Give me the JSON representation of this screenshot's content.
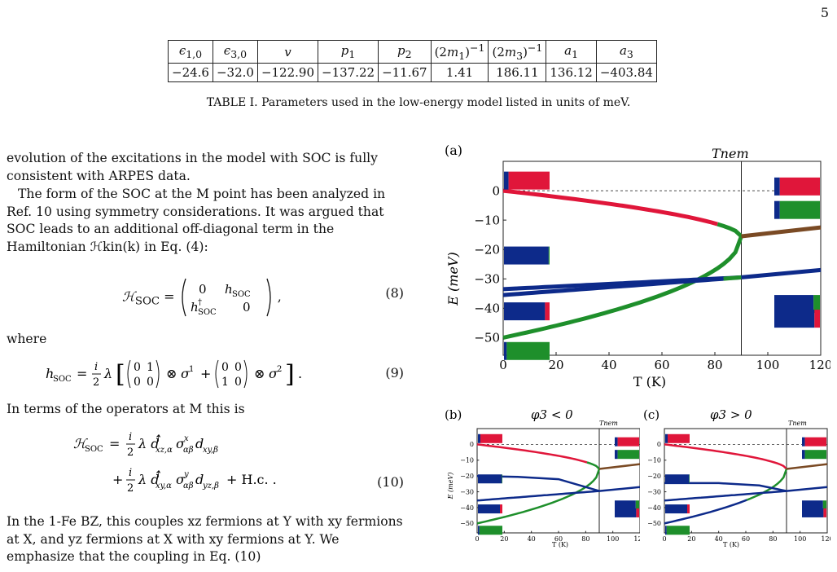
{
  "page_number": "5",
  "table": {
    "headers": [
      "ε1,0",
      "ε3,0",
      "v",
      "p1",
      "p2",
      "(2m1)−1",
      "(2m3)−1",
      "a1",
      "a3"
    ],
    "values": [
      "−24.6",
      "−32.0",
      "−122.90",
      "−137.22",
      "−11.67",
      "1.41",
      "186.11",
      "136.12",
      "−403.84"
    ]
  },
  "table_caption": "TABLE I. Parameters used in the low-energy model listed in units of meV.",
  "text": {
    "p1": "evolution of the excitations in the model with SOC is fully consistent with ARPES data.",
    "p2": "The form of the SOC at the M point has been analyzed in Ref. 10 using symmetry considerations. It was argued that SOC leads to an additional off-diagonal term in the Hamiltonian ℋkin(k) in Eq. (4):",
    "where": "where",
    "p3": "In terms of the operators at M this is",
    "p4": "In the 1-Fe BZ, this couples xz fermions at Y with xy fermions at X, and yz fermions at X with xy fermions at Y.  We emphasize that the coupling in Eq. (10)"
  },
  "equations": {
    "eq8_num": "(8)",
    "eq9_num": "(9)",
    "eq10_num": "(10)"
  },
  "figure": {
    "panel_a": {
      "label": "(a)",
      "tnem_label": "Tnem",
      "xlabel": "T (K)",
      "ylabel": "E (meV)"
    },
    "panel_b": {
      "label": "(b)",
      "title": "φ3 < 0",
      "tnem_label": "Tnem",
      "xlabel": "T (K)",
      "ylabel": "E (meV)"
    },
    "panel_c": {
      "label": "(c)",
      "title": "φ3 > 0",
      "tnem_label": "Tnem",
      "xlabel": "T (K)"
    },
    "colors": {
      "red": "#e0163a",
      "green": "#1e8f2b",
      "blue": "#0d2a8a",
      "brown": "#7a4a24"
    }
  },
  "chart_data": [
    {
      "type": "line",
      "panel": "(a)",
      "title": "",
      "xlabel": "T (K)",
      "ylabel": "E (meV)",
      "xlim": [
        0,
        120
      ],
      "ylim": [
        -56,
        10
      ],
      "x_ticks": [
        0,
        20,
        40,
        60,
        80,
        100,
        120
      ],
      "y_ticks": [
        0,
        -10,
        -20,
        -30,
        -40,
        -50
      ],
      "annotations": [
        "Tnem"
      ],
      "vline_x": 90,
      "series": [
        {
          "color": "red/green",
          "x": [
            0,
            20,
            40,
            60,
            80,
            90
          ],
          "values": [
            0,
            -1.5,
            -3.5,
            -6.5,
            -10.5,
            -15.5
          ]
        },
        {
          "color": "green",
          "x": [
            0,
            20,
            40,
            60,
            80,
            90
          ],
          "values": [
            -50,
            -45,
            -40,
            -35,
            -30,
            -15.5
          ]
        },
        {
          "color": "brown",
          "x": [
            90,
            100,
            110,
            120
          ],
          "values": [
            -15.5,
            -14.5,
            -13.5,
            -12.5
          ]
        },
        {
          "color": "blue",
          "x": [
            0,
            20,
            40,
            60,
            80,
            90,
            120
          ],
          "values": [
            -33.5,
            -32,
            -31,
            -30.5,
            -30,
            -29.5,
            -27
          ]
        },
        {
          "color": "blue/green",
          "x": [
            0,
            20,
            40,
            60,
            80,
            90
          ],
          "values": [
            -35.5,
            -34,
            -33,
            -31.5,
            -30.5,
            -29.5
          ]
        }
      ]
    },
    {
      "type": "line",
      "panel": "(b)",
      "title": "φ3 < 0",
      "xlabel": "T (K)",
      "ylabel": "E (meV)",
      "xlim": [
        0,
        120
      ],
      "ylim": [
        -56,
        10
      ],
      "x_ticks": [
        0,
        20,
        40,
        60,
        80,
        100,
        120
      ],
      "y_ticks": [
        0,
        -10,
        -20,
        -30,
        -40,
        -50
      ]
    },
    {
      "type": "line",
      "panel": "(c)",
      "title": "φ3 > 0",
      "xlabel": "T (K)",
      "ylabel": "",
      "xlim": [
        0,
        120
      ],
      "ylim": [
        -56,
        10
      ],
      "x_ticks": [
        0,
        20,
        40,
        60,
        80,
        100,
        120
      ],
      "y_ticks": [
        0,
        -10,
        -20,
        -30,
        -40,
        -50
      ]
    }
  ]
}
